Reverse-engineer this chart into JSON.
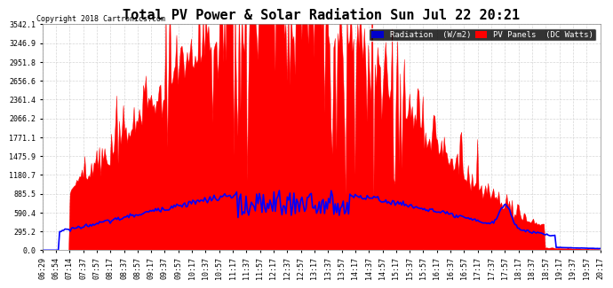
{
  "title": "Total PV Power & Solar Radiation Sun Jul 22 20:21",
  "copyright": "Copyright 2018 Cartronics.com",
  "legend_radiation": "Radiation  (W/m2)",
  "legend_pv": "PV Panels  (DC Watts)",
  "bg_color": "#ffffff",
  "plot_bg_color": "#ffffff",
  "grid_color": "#cccccc",
  "red_fill_color": "#ff0000",
  "blue_line_color": "#0000ff",
  "y_max": 3542.1,
  "y_ticks": [
    0.0,
    295.2,
    590.4,
    885.5,
    1180.7,
    1475.9,
    1771.1,
    2066.2,
    2361.4,
    2656.6,
    2951.8,
    3246.9,
    3542.1
  ],
  "x_tick_labels": [
    "06:29",
    "06:54",
    "07:14",
    "07:37",
    "07:57",
    "08:17",
    "08:37",
    "08:57",
    "09:17",
    "09:37",
    "09:57",
    "10:17",
    "10:37",
    "10:57",
    "11:17",
    "11:37",
    "11:57",
    "12:17",
    "12:37",
    "12:57",
    "13:17",
    "13:37",
    "13:57",
    "14:17",
    "14:37",
    "14:57",
    "15:17",
    "15:37",
    "15:57",
    "16:17",
    "16:37",
    "16:57",
    "17:17",
    "17:37",
    "17:57",
    "18:17",
    "18:37",
    "18:57",
    "19:17",
    "19:37",
    "19:57",
    "20:17"
  ],
  "num_points": 420
}
